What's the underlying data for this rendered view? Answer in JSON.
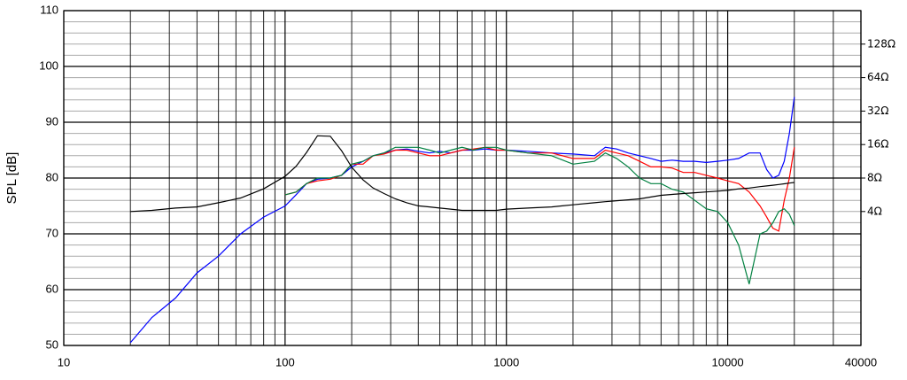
{
  "chart_data": {
    "type": "line",
    "y_label": "SPL [dB]",
    "x": [
      20,
      25,
      32,
      40,
      50,
      63,
      80,
      100,
      112,
      125,
      140,
      160,
      180,
      200,
      225,
      250,
      280,
      315,
      355,
      400,
      450,
      500,
      560,
      630,
      710,
      800,
      900,
      1000,
      1250,
      1600,
      2000,
      2500,
      2800,
      3150,
      3550,
      4000,
      4500,
      5000,
      5600,
      6300,
      7100,
      8000,
      9000,
      10000,
      11200,
      12500,
      14000,
      15000,
      16000,
      17000,
      18000,
      19000,
      20000
    ],
    "series": [
      {
        "color": "#0000ff",
        "values": [
          50.5,
          55,
          58.5,
          63,
          66,
          70,
          73,
          75,
          77,
          79,
          79.8,
          80,
          80.5,
          82,
          83,
          84,
          84.5,
          85,
          85.2,
          84.8,
          84.5,
          84.8,
          84.5,
          85,
          85,
          85.2,
          85,
          85,
          84.8,
          84.5,
          84.3,
          84,
          85.5,
          85.2,
          84.5,
          84,
          83.5,
          83,
          83.2,
          83,
          83,
          82.8,
          83,
          83.2,
          83.5,
          84.5,
          84.5,
          81.5,
          80,
          80.5,
          83,
          88,
          94.5
        ]
      },
      {
        "color": "#ff0000",
        "values": [
          null,
          null,
          null,
          null,
          null,
          null,
          null,
          77,
          77.5,
          79,
          79.5,
          79.8,
          80.5,
          82.5,
          82.5,
          84,
          84.3,
          85,
          85,
          84.5,
          84,
          84,
          84.5,
          85,
          85.2,
          85.5,
          85,
          85,
          84.5,
          84.5,
          83.5,
          83.5,
          85,
          84.5,
          84,
          83,
          82,
          82,
          81.8,
          81,
          81,
          80.5,
          80,
          79.5,
          79,
          77.5,
          75,
          73,
          71,
          70.5,
          76,
          80,
          85.5
        ]
      },
      {
        "color": "#008040",
        "values": [
          null,
          null,
          null,
          null,
          null,
          null,
          null,
          77,
          77.5,
          79,
          80,
          80,
          80.5,
          82.5,
          83,
          84,
          84.5,
          85.5,
          85.5,
          85.5,
          85,
          84.5,
          85,
          85.5,
          85,
          85.5,
          85.5,
          85,
          84.5,
          84,
          82.5,
          83,
          84.5,
          83.5,
          82,
          80,
          79,
          79,
          78,
          77.5,
          76,
          74.5,
          74,
          72,
          68,
          61,
          70,
          70.5,
          72,
          74,
          74.5,
          73.5,
          71.5
        ]
      },
      {
        "color": "#000000",
        "axis": "y2",
        "values": [
          4.0,
          4.1,
          4.3,
          4.4,
          4.8,
          5.3,
          6.4,
          8.3,
          10.2,
          13.6,
          19.2,
          19.0,
          14.1,
          10.0,
          7.7,
          6.5,
          5.8,
          5.2,
          4.8,
          4.5,
          4.4,
          4.3,
          4.2,
          4.1,
          4.1,
          4.1,
          4.1,
          4.2,
          4.3,
          4.4,
          4.6,
          4.8,
          4.9,
          5.0,
          5.1,
          5.2,
          5.4,
          5.6,
          5.7,
          5.8,
          5.9,
          6.0,
          6.1,
          6.2,
          6.4,
          6.5,
          6.7,
          6.8,
          6.9,
          7.0,
          7.1,
          7.2,
          7.3
        ]
      }
    ],
    "xlim": [
      10,
      40000
    ],
    "xlog": true,
    "xticks": [
      10,
      100,
      1000,
      10000,
      40000
    ],
    "ylim": [
      50,
      110
    ],
    "yticks": [
      50,
      60,
      70,
      80,
      90,
      100,
      110
    ],
    "y2lim": [
      0.25,
      256
    ],
    "y2log": true,
    "y2ticks": [
      {
        "value": 4,
        "label": "4Ω"
      },
      {
        "value": 8,
        "label": "8Ω"
      },
      {
        "value": 16,
        "label": "16Ω"
      },
      {
        "value": 32,
        "label": "32Ω"
      },
      {
        "value": 64,
        "label": "64Ω"
      },
      {
        "value": 128,
        "label": "128Ω"
      }
    ],
    "grid": true
  }
}
